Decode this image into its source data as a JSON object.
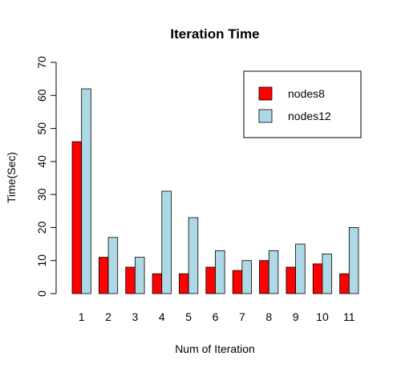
{
  "chart_data": {
    "type": "bar",
    "title": "Iteration Time",
    "xlabel": "Num of Iteration",
    "ylabel": "Time(Sec)",
    "categories": [
      "1",
      "2",
      "3",
      "4",
      "5",
      "6",
      "7",
      "8",
      "9",
      "10",
      "11"
    ],
    "series": [
      {
        "name": "nodes8",
        "color": "#ff0000",
        "values": [
          46,
          11,
          8,
          6,
          6,
          8,
          7,
          10,
          8,
          9,
          6
        ]
      },
      {
        "name": "nodes12",
        "color": "#add8e6",
        "values": [
          62,
          17,
          11,
          31,
          23,
          13,
          10,
          13,
          15,
          12,
          20
        ]
      }
    ],
    "ylim": [
      0,
      70
    ],
    "yticks": [
      0,
      10,
      20,
      30,
      40,
      50,
      60,
      70
    ],
    "legend_position": "top-right",
    "grid": false
  }
}
